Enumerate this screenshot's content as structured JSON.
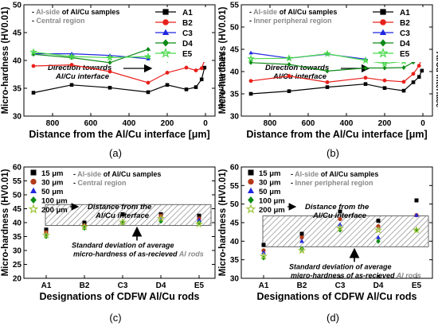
{
  "charts": [
    {
      "id": "a",
      "ylabel": "Micro-hardness (HV0.01)",
      "xlabel": "Distance from the Al/Cu interface [μm]",
      "panel_label": "(a)",
      "note_lines": [
        {
          "prefix": "- ",
          "gray": "Al-side",
          "rest": " of Al/Cu samples",
          "rest_gray": false
        },
        {
          "prefix": "- ",
          "gray": "Central region",
          "rest": "",
          "rest_gray": true
        }
      ],
      "arrow_text": [
        "Direction towards",
        "Al/Cu interface"
      ],
      "side_label": "Al/Cu interface"
    },
    {
      "id": "b",
      "ylabel": "Micro-hardness (HV0.01)",
      "xlabel": "Distance from the Al/Cu interface [μm]",
      "panel_label": "(b)",
      "note_lines": [
        {
          "prefix": "- ",
          "gray": "Al-side",
          "rest": " of Al/Cu samples",
          "rest_gray": false
        },
        {
          "prefix": "- ",
          "gray": "Inner peripheral region",
          "rest": "",
          "rest_gray": true
        }
      ],
      "arrow_text": [
        "Direction towards",
        "Al/Cu interface"
      ],
      "side_label": "Al/Cu interface"
    },
    {
      "id": "c",
      "ylabel": "Micro-hardness (HV0.01)",
      "xlabel": "Designations of CDFW Al/Cu rods",
      "panel_label": "(c)",
      "note_lines": [
        {
          "prefix": "- ",
          "gray": "Al-side",
          "rest": " of Al/Cu samples",
          "rest_gray": false
        },
        {
          "prefix": "- ",
          "gray": "Central region",
          "rest": "",
          "rest_gray": true
        }
      ],
      "arrow_text": [
        "Distance from the",
        "Al/Cu interface"
      ],
      "std_text": [
        "Standard deviation of average",
        "micro-hardness of as-recieved ",
        "Al rods"
      ]
    },
    {
      "id": "d",
      "ylabel": "Micro-hardness (HV0.01)",
      "xlabel": "Designations of CDFW Al/Cu rods",
      "panel_label": "(d)",
      "note_lines": [
        {
          "prefix": "- ",
          "gray": "Al-side",
          "rest": " of Al/Cu samples",
          "rest_gray": false
        },
        {
          "prefix": "- ",
          "gray": "Inner peripheral region",
          "rest": "",
          "rest_gray": true
        }
      ],
      "arrow_text": [
        "Distance from the",
        "Al/Cu interface"
      ],
      "std_text": [
        "Standard deviation of average",
        "micro-hardness of as-recieved ",
        "Al rods"
      ]
    }
  ],
  "chart_data": [
    {
      "type": "line",
      "x_reversed": true,
      "xlim": [
        950,
        -50
      ],
      "ylim": [
        30,
        50
      ],
      "xticks": [
        800,
        600,
        400,
        200,
        0
      ],
      "yticks": [
        30,
        35,
        40,
        45,
        50
      ],
      "legend_position": "top-right",
      "series": [
        {
          "name": "A1",
          "color": "#000000",
          "marker": "square",
          "points": [
            [
              900,
              34.2
            ],
            [
              700,
              35.6
            ],
            [
              500,
              35.1
            ],
            [
              300,
              34.3
            ],
            [
              200,
              35.6
            ],
            [
              100,
              34.8
            ],
            [
              50,
              35.2
            ],
            [
              20,
              36.6
            ],
            [
              5,
              38.7
            ]
          ]
        },
        {
          "name": "B2",
          "color": "#e8201b",
          "marker": "circle",
          "points": [
            [
              900,
              39.0
            ],
            [
              700,
              39.2
            ],
            [
              500,
              38.0
            ],
            [
              300,
              36.0
            ],
            [
              200,
              37.8
            ],
            [
              100,
              38.7
            ],
            [
              50,
              38.2
            ],
            [
              20,
              38.6
            ],
            [
              5,
              40.0
            ]
          ]
        },
        {
          "name": "C3",
          "color": "#1f26e0",
          "marker": "triangle",
          "points": [
            [
              900,
              41.2
            ],
            [
              700,
              41.2
            ],
            [
              500,
              40.9
            ],
            [
              300,
              40.3
            ],
            [
              200,
              40.7
            ],
            [
              100,
              40.5
            ],
            [
              50,
              41.0
            ],
            [
              20,
              41.5
            ],
            [
              5,
              42.3
            ]
          ]
        },
        {
          "name": "D4",
          "color": "#0e8a17",
          "marker": "diamond",
          "points": [
            [
              900,
              41.1
            ],
            [
              700,
              40.5
            ],
            [
              500,
              39.6
            ],
            [
              300,
              42.0
            ],
            [
              200,
              40.0
            ],
            [
              100,
              40.1
            ],
            [
              50,
              41.5
            ],
            [
              20,
              42.1
            ],
            [
              5,
              42.9
            ]
          ]
        },
        {
          "name": "E5",
          "color": "#4cd94c",
          "marker": "star",
          "points": [
            [
              900,
              41.5
            ],
            [
              700,
              40.7
            ],
            [
              500,
              40.5
            ],
            [
              300,
              40.7
            ],
            [
              200,
              40.3
            ],
            [
              100,
              40.2
            ],
            [
              50,
              40.8
            ],
            [
              20,
              42.5
            ],
            [
              5,
              43.2
            ]
          ]
        }
      ]
    },
    {
      "type": "line",
      "x_reversed": true,
      "xlim": [
        950,
        -50
      ],
      "ylim": [
        30,
        55
      ],
      "xticks": [
        800,
        600,
        400,
        200,
        0
      ],
      "yticks": [
        30,
        35,
        40,
        45,
        50,
        55
      ],
      "legend_position": "top-right",
      "series": [
        {
          "name": "A1",
          "color": "#000000",
          "marker": "square",
          "points": [
            [
              900,
              35.0
            ],
            [
              700,
              35.6
            ],
            [
              500,
              36.5
            ],
            [
              300,
              37.2
            ],
            [
              200,
              36.3
            ],
            [
              100,
              35.7
            ],
            [
              50,
              37.6
            ],
            [
              20,
              38.8
            ],
            [
              5,
              40.2
            ]
          ]
        },
        {
          "name": "B2",
          "color": "#e8201b",
          "marker": "circle",
          "points": [
            [
              900,
              37.9
            ],
            [
              700,
              39.0
            ],
            [
              500,
              37.6
            ],
            [
              300,
              38.6
            ],
            [
              200,
              38.0
            ],
            [
              100,
              37.7
            ],
            [
              50,
              39.5
            ],
            [
              20,
              41.3
            ],
            [
              5,
              43.0
            ]
          ]
        },
        {
          "name": "C3",
          "color": "#1f26e0",
          "marker": "triangle",
          "points": [
            [
              900,
              44.2
            ],
            [
              700,
              43.0
            ],
            [
              500,
              43.9
            ],
            [
              300,
              42.8
            ],
            [
              200,
              42.4
            ],
            [
              100,
              42.7
            ],
            [
              50,
              44.4
            ],
            [
              20,
              46.0
            ],
            [
              5,
              47.9
            ]
          ]
        },
        {
          "name": "D4",
          "color": "#0e8a17",
          "marker": "diamond",
          "points": [
            [
              900,
              42.0
            ],
            [
              700,
              41.6
            ],
            [
              500,
              40.1
            ],
            [
              300,
              40.8
            ],
            [
              200,
              40.8
            ],
            [
              100,
              40.9
            ],
            [
              50,
              42.1
            ],
            [
              20,
              44.2
            ],
            [
              5,
              46.9
            ]
          ]
        },
        {
          "name": "E5",
          "color": "#4cd94c",
          "marker": "star",
          "points": [
            [
              900,
              42.9
            ],
            [
              700,
              43.0
            ],
            [
              500,
              44.0
            ],
            [
              300,
              42.5
            ],
            [
              200,
              41.8
            ],
            [
              100,
              42.3
            ],
            [
              50,
              44.0
            ],
            [
              20,
              46.1
            ],
            [
              5,
              51.0
            ]
          ]
        }
      ]
    },
    {
      "type": "scatter",
      "categories": [
        "A1",
        "B2",
        "C3",
        "D4",
        "E5"
      ],
      "ylim": [
        20,
        60
      ],
      "yticks": [
        20,
        25,
        30,
        35,
        40,
        45,
        50,
        55,
        60
      ],
      "std_band": [
        39,
        46.5
      ],
      "legend_position": "top-left",
      "series": [
        {
          "name": "15 μm",
          "color": "#000000",
          "marker": "square",
          "values": [
            37.5,
            40.0,
            43.0,
            43.0,
            42.5
          ]
        },
        {
          "name": "30 μm",
          "color": "#b33a1a",
          "marker": "circle",
          "values": [
            36.5,
            39.0,
            40.0,
            42.5,
            41.5
          ]
        },
        {
          "name": "50 μm",
          "color": "#1f26e0",
          "marker": "triangle",
          "values": [
            35.5,
            38.5,
            40.5,
            41.0,
            41.0
          ]
        },
        {
          "name": "100 μm",
          "color": "#0e8a17",
          "marker": "diamond",
          "values": [
            35.0,
            38.0,
            40.0,
            40.5,
            40.0
          ]
        },
        {
          "name": "200 μm",
          "color": "#9ec43c",
          "marker": "star",
          "values": [
            35.5,
            38.5,
            40.2,
            41.5,
            39.5
          ]
        }
      ]
    },
    {
      "type": "scatter",
      "categories": [
        "A1",
        "B2",
        "C3",
        "D4",
        "E5"
      ],
      "ylim": [
        30,
        60
      ],
      "yticks": [
        30,
        35,
        40,
        45,
        50,
        55,
        60
      ],
      "std_band": [
        38.5,
        46.8
      ],
      "legend_position": "top-left",
      "series": [
        {
          "name": "15 μm",
          "color": "#000000",
          "marker": "square",
          "values": [
            39.0,
            42.0,
            48.0,
            45.5,
            51.0
          ]
        },
        {
          "name": "30 μm",
          "color": "#b33a1a",
          "marker": "circle",
          "values": [
            37.5,
            41.0,
            46.0,
            44.0,
            47.0
          ]
        },
        {
          "name": "50 μm",
          "color": "#1f26e0",
          "marker": "triangle",
          "values": [
            37.0,
            40.0,
            44.5,
            41.0,
            47.0
          ]
        },
        {
          "name": "100 μm",
          "color": "#0e8a17",
          "marker": "diamond",
          "values": [
            35.5,
            38.0,
            43.0,
            40.0,
            43.0
          ]
        },
        {
          "name": "200 μm",
          "color": "#9ec43c",
          "marker": "star",
          "values": [
            36.0,
            37.5,
            43.5,
            43.0,
            43.0
          ]
        }
      ]
    }
  ]
}
